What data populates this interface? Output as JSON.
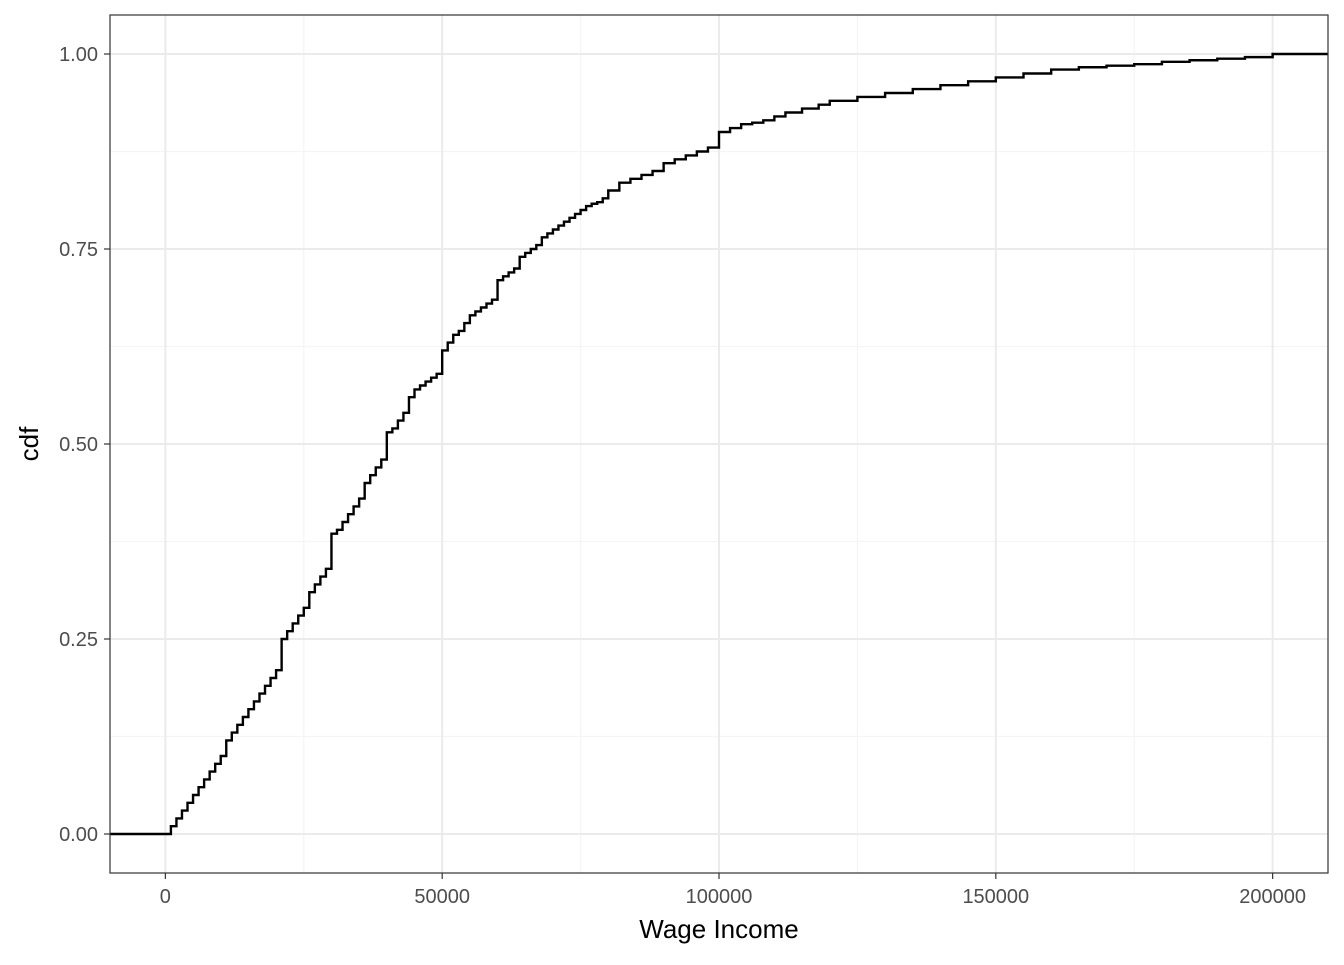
{
  "chart_data": {
    "type": "line",
    "subtype": "ecdf-step",
    "title": "",
    "xlabel": "Wage Income",
    "ylabel": "cdf",
    "xlim": [
      -10000,
      210000
    ],
    "ylim": [
      -0.05,
      1.05
    ],
    "x_ticks": [
      0,
      50000,
      100000,
      150000,
      200000
    ],
    "x_tick_labels": [
      "0",
      "50000",
      "100000",
      "150000",
      "200000"
    ],
    "y_ticks": [
      0,
      0.25,
      0.5,
      0.75,
      1
    ],
    "y_tick_labels": [
      "0.00",
      "0.25",
      "0.50",
      "0.75",
      "1.00"
    ],
    "grid": true,
    "legend": "none",
    "colors": {
      "line": "#000000",
      "grid_major": "#ebebeb",
      "grid_minor": "#f5f5f5",
      "panel_border": "#333333"
    },
    "series": [
      {
        "x": [
          -10000,
          1000,
          2000,
          3000,
          4000,
          5000,
          6000,
          7000,
          8000,
          9000,
          10000,
          11000,
          12000,
          13000,
          14000,
          15000,
          16000,
          17000,
          18000,
          19000,
          20000,
          21000,
          22000,
          23000,
          24000,
          25000,
          26000,
          27000,
          28000,
          29000,
          30000,
          31000,
          32000,
          33000,
          34000,
          35000,
          36000,
          37000,
          38000,
          39000,
          40000,
          41000,
          42000,
          43000,
          44000,
          45000,
          46000,
          47000,
          48000,
          49000,
          50000,
          51000,
          52000,
          53000,
          54000,
          55000,
          56000,
          57000,
          58000,
          59000,
          60000,
          61000,
          62000,
          63000,
          64000,
          65000,
          66000,
          67000,
          68000,
          69000,
          70000,
          71000,
          72000,
          73000,
          74000,
          75000,
          76000,
          77000,
          78000,
          79000,
          80000,
          82000,
          84000,
          86000,
          88000,
          90000,
          92000,
          94000,
          96000,
          98000,
          100000,
          102000,
          104000,
          106000,
          108000,
          110000,
          112000,
          115000,
          118000,
          120000,
          125000,
          130000,
          135000,
          140000,
          145000,
          150000,
          155000,
          160000,
          165000,
          170000,
          175000,
          180000,
          185000,
          190000,
          195000,
          200000,
          210000
        ],
        "y": [
          0,
          0.01,
          0.02,
          0.03,
          0.04,
          0.05,
          0.06,
          0.07,
          0.08,
          0.09,
          0.1,
          0.12,
          0.13,
          0.14,
          0.15,
          0.16,
          0.17,
          0.18,
          0.19,
          0.2,
          0.21,
          0.25,
          0.26,
          0.27,
          0.28,
          0.29,
          0.31,
          0.32,
          0.33,
          0.34,
          0.385,
          0.39,
          0.4,
          0.41,
          0.42,
          0.43,
          0.45,
          0.46,
          0.47,
          0.48,
          0.515,
          0.52,
          0.53,
          0.54,
          0.56,
          0.57,
          0.575,
          0.58,
          0.585,
          0.59,
          0.62,
          0.63,
          0.64,
          0.645,
          0.655,
          0.665,
          0.67,
          0.675,
          0.68,
          0.685,
          0.71,
          0.715,
          0.72,
          0.725,
          0.74,
          0.745,
          0.75,
          0.755,
          0.765,
          0.77,
          0.775,
          0.78,
          0.785,
          0.79,
          0.795,
          0.8,
          0.805,
          0.808,
          0.81,
          0.815,
          0.825,
          0.835,
          0.84,
          0.845,
          0.85,
          0.86,
          0.865,
          0.87,
          0.875,
          0.88,
          0.9,
          0.905,
          0.91,
          0.912,
          0.915,
          0.92,
          0.925,
          0.93,
          0.935,
          0.94,
          0.945,
          0.95,
          0.955,
          0.96,
          0.965,
          0.97,
          0.975,
          0.98,
          0.983,
          0.985,
          0.987,
          0.99,
          0.992,
          0.994,
          0.996,
          1.0,
          1.0
        ]
      }
    ]
  }
}
